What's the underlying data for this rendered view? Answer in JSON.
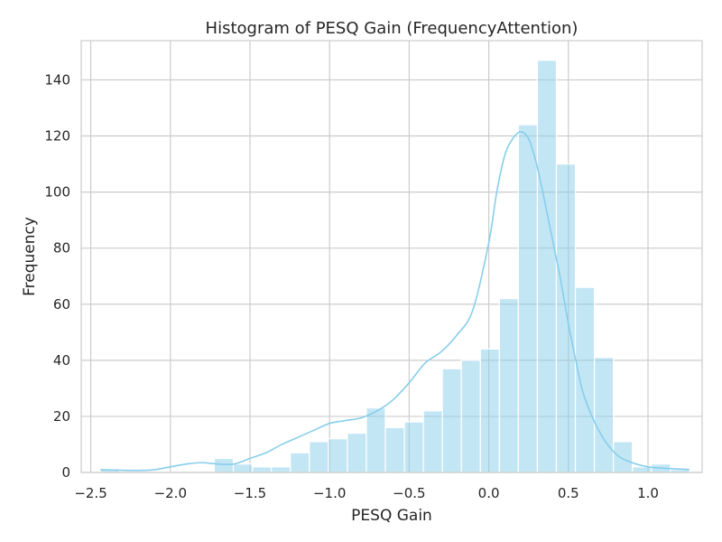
{
  "chart_data": {
    "type": "bar",
    "title": "Histogram of PESQ Gain (FrequencyAttention)",
    "xlabel": "PESQ Gain",
    "ylabel": "Frequency",
    "xlim": [
      -2.56,
      1.34
    ],
    "ylim": [
      0,
      154
    ],
    "xticks": [
      -2.5,
      -2.0,
      -1.5,
      -1.0,
      -0.5,
      0.0,
      0.5,
      1.0
    ],
    "xtick_labels": [
      "−2.5",
      "−2.0",
      "−1.5",
      "−1.0",
      "−0.5",
      "0.0",
      "0.5",
      "1.0"
    ],
    "yticks": [
      0,
      20,
      40,
      60,
      80,
      100,
      120,
      140
    ],
    "ytick_labels": [
      "0",
      "20",
      "40",
      "60",
      "80",
      "100",
      "120",
      "140"
    ],
    "grid": true,
    "bar_color": "#87ceeb",
    "line_color": "#87ceeb",
    "bins": {
      "x_start": -2.44,
      "x_end": 1.26,
      "counts": [
        1,
        0,
        0,
        0,
        0,
        0,
        5,
        3,
        2,
        2,
        7,
        11,
        12,
        14,
        23,
        16,
        18,
        22,
        37,
        40,
        44,
        62,
        124,
        147,
        110,
        66,
        41,
        11,
        2,
        3,
        1
      ]
    },
    "kde": {
      "x": [
        -2.44,
        -2.3,
        -2.2,
        -2.1,
        -2.0,
        -1.9,
        -1.8,
        -1.7,
        -1.6,
        -1.5,
        -1.4,
        -1.3,
        -1.2,
        -1.1,
        -1.0,
        -0.9,
        -0.8,
        -0.7,
        -0.6,
        -0.5,
        -0.4,
        -0.3,
        -0.2,
        -0.1,
        0.0,
        0.05,
        0.1,
        0.15,
        0.2,
        0.25,
        0.3,
        0.35,
        0.4,
        0.45,
        0.5,
        0.55,
        0.6,
        0.7,
        0.8,
        0.9,
        1.0,
        1.1,
        1.26
      ],
      "y": [
        1,
        0.8,
        0.7,
        1,
        2,
        3,
        3.5,
        3,
        3,
        5,
        7,
        10,
        12.5,
        15,
        17.5,
        18.5,
        19.5,
        22,
        26,
        32,
        39,
        43,
        49,
        58,
        82,
        100,
        113,
        119,
        121.5,
        119,
        110,
        97,
        83,
        69,
        53,
        39,
        27,
        14,
        6.5,
        3.5,
        2,
        1.5,
        1
      ]
    }
  }
}
